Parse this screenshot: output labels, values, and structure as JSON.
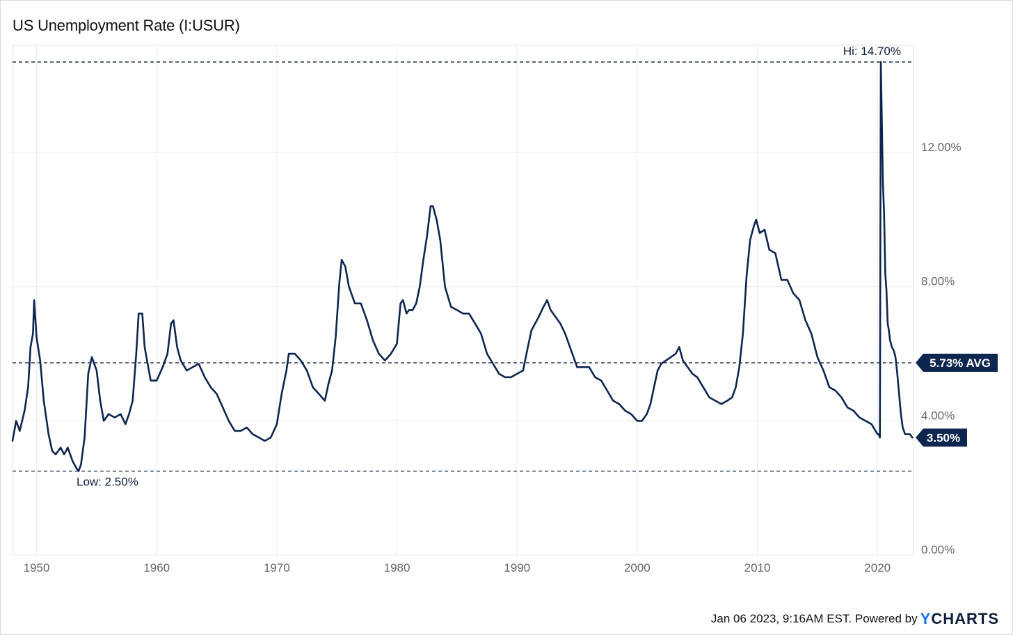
{
  "chart_data": {
    "type": "line",
    "title": "US Unemployment Rate (I:USUR)",
    "xlabel": "",
    "ylabel": "",
    "xlim": [
      1948.0,
      2023.0
    ],
    "ylim": [
      0,
      15.2
    ],
    "x_ticks": [
      {
        "value": 1950,
        "label": "1950"
      },
      {
        "value": 1960,
        "label": "1960"
      },
      {
        "value": 1970,
        "label": "1970"
      },
      {
        "value": 1980,
        "label": "1980"
      },
      {
        "value": 1990,
        "label": "1990"
      },
      {
        "value": 2000,
        "label": "2000"
      },
      {
        "value": 2010,
        "label": "2010"
      },
      {
        "value": 2020,
        "label": "2020"
      }
    ],
    "y_ticks": [
      {
        "value": 0,
        "label": "0.00%"
      },
      {
        "value": 4,
        "label": "4.00%"
      },
      {
        "value": 8,
        "label": "8.00%"
      },
      {
        "value": 12,
        "label": "12.00%"
      }
    ],
    "grid": true,
    "line_color": "#0d2650",
    "reference_lines": [
      {
        "value": 14.7,
        "label": "Hi: 14.70%"
      },
      {
        "value": 5.73,
        "label": "5.73% AVG"
      },
      {
        "value": 2.5,
        "label": "Low: 2.50%"
      }
    ],
    "last_value": {
      "value": 3.5,
      "label": "3.50%"
    },
    "series": [
      {
        "x": [
          1948.0,
          1948.3,
          1948.6,
          1949.0,
          1949.3,
          1949.5,
          1949.7,
          1949.8,
          1950.0,
          1950.3,
          1950.6,
          1951.0,
          1951.3,
          1951.6,
          1952.0,
          1952.3,
          1952.6,
          1953.0,
          1953.3,
          1953.5,
          1953.7,
          1954.0,
          1954.3,
          1954.6,
          1955.0,
          1955.3,
          1955.6,
          1956.0,
          1956.5,
          1957.0,
          1957.4,
          1957.7,
          1958.0,
          1958.3,
          1958.5,
          1958.8,
          1959.0,
          1959.5,
          1960.0,
          1960.5,
          1960.9,
          1961.2,
          1961.4,
          1961.7,
          1962.0,
          1962.5,
          1963.0,
          1963.5,
          1964.0,
          1964.5,
          1965.0,
          1965.5,
          1966.0,
          1966.5,
          1967.0,
          1967.5,
          1968.0,
          1968.5,
          1969.0,
          1969.5,
          1970.0,
          1970.4,
          1970.8,
          1971.0,
          1971.5,
          1972.0,
          1972.5,
          1973.0,
          1973.5,
          1974.0,
          1974.3,
          1974.6,
          1974.9,
          1975.2,
          1975.4,
          1975.7,
          1976.0,
          1976.5,
          1977.0,
          1977.5,
          1978.0,
          1978.5,
          1979.0,
          1979.5,
          1980.0,
          1980.3,
          1980.5,
          1980.8,
          1981.0,
          1981.3,
          1981.6,
          1981.9,
          1982.2,
          1982.5,
          1982.8,
          1983.0,
          1983.3,
          1983.6,
          1984.0,
          1984.5,
          1985.0,
          1985.5,
          1986.0,
          1986.5,
          1987.0,
          1987.5,
          1988.0,
          1988.5,
          1989.0,
          1989.5,
          1990.0,
          1990.5,
          1990.9,
          1991.2,
          1991.5,
          1991.8,
          1992.2,
          1992.5,
          1992.8,
          1993.2,
          1993.6,
          1994.0,
          1994.5,
          1995.0,
          1995.5,
          1996.0,
          1996.5,
          1997.0,
          1997.5,
          1998.0,
          1998.5,
          1999.0,
          1999.5,
          2000.0,
          2000.4,
          2000.8,
          2001.1,
          2001.4,
          2001.7,
          2002.0,
          2002.4,
          2002.8,
          2003.2,
          2003.5,
          2003.8,
          2004.2,
          2004.6,
          2005.0,
          2005.5,
          2006.0,
          2006.5,
          2007.0,
          2007.5,
          2007.9,
          2008.2,
          2008.5,
          2008.8,
          2009.1,
          2009.4,
          2009.7,
          2009.9,
          2010.2,
          2010.6,
          2011.0,
          2011.5,
          2012.0,
          2012.5,
          2013.0,
          2013.5,
          2014.0,
          2014.5,
          2015.0,
          2015.5,
          2016.0,
          2016.5,
          2017.0,
          2017.5,
          2018.0,
          2018.5,
          2019.0,
          2019.5,
          2020.0,
          2020.1,
          2020.2,
          2020.28,
          2020.35,
          2020.45,
          2020.55,
          2020.65,
          2020.75,
          2020.85,
          2020.95,
          2021.05,
          2021.2,
          2021.35,
          2021.5,
          2021.65,
          2021.8,
          2021.95,
          2022.1,
          2022.3,
          2022.5,
          2022.7,
          2022.9
        ],
        "values": [
          3.4,
          4.0,
          3.7,
          4.3,
          5.0,
          6.2,
          6.6,
          7.6,
          6.5,
          5.8,
          4.6,
          3.6,
          3.1,
          3.0,
          3.2,
          3.0,
          3.2,
          2.8,
          2.6,
          2.5,
          2.7,
          3.5,
          5.4,
          5.9,
          5.5,
          4.6,
          4.0,
          4.2,
          4.1,
          4.2,
          3.9,
          4.2,
          4.6,
          6.0,
          7.2,
          7.2,
          6.2,
          5.2,
          5.2,
          5.6,
          6.0,
          6.9,
          7.0,
          6.2,
          5.8,
          5.5,
          5.6,
          5.7,
          5.3,
          5.0,
          4.8,
          4.4,
          4.0,
          3.7,
          3.7,
          3.8,
          3.6,
          3.5,
          3.4,
          3.5,
          3.9,
          4.8,
          5.5,
          6.0,
          6.0,
          5.8,
          5.5,
          5.0,
          4.8,
          4.6,
          5.1,
          5.5,
          6.5,
          8.1,
          8.8,
          8.6,
          8.0,
          7.5,
          7.5,
          7.0,
          6.4,
          6.0,
          5.8,
          6.0,
          6.3,
          7.5,
          7.6,
          7.2,
          7.3,
          7.3,
          7.5,
          8.0,
          8.8,
          9.5,
          10.4,
          10.4,
          10.0,
          9.4,
          8.0,
          7.4,
          7.3,
          7.2,
          7.2,
          6.9,
          6.6,
          6.0,
          5.7,
          5.4,
          5.3,
          5.3,
          5.4,
          5.5,
          6.2,
          6.7,
          6.9,
          7.1,
          7.4,
          7.6,
          7.3,
          7.1,
          6.9,
          6.6,
          6.1,
          5.6,
          5.6,
          5.6,
          5.3,
          5.2,
          4.9,
          4.6,
          4.5,
          4.3,
          4.2,
          4.0,
          4.0,
          4.2,
          4.5,
          5.0,
          5.5,
          5.7,
          5.8,
          5.9,
          6.0,
          6.2,
          5.8,
          5.6,
          5.4,
          5.3,
          5.0,
          4.7,
          4.6,
          4.5,
          4.6,
          4.7,
          5.0,
          5.6,
          6.6,
          8.3,
          9.4,
          9.8,
          10.0,
          9.6,
          9.7,
          9.1,
          9.0,
          8.2,
          8.2,
          7.8,
          7.6,
          7.0,
          6.6,
          5.9,
          5.5,
          5.0,
          4.9,
          4.7,
          4.4,
          4.3,
          4.1,
          4.0,
          3.9,
          3.6,
          3.6,
          3.5,
          14.7,
          13.3,
          11.1,
          10.2,
          8.4,
          7.9,
          6.9,
          6.7,
          6.4,
          6.2,
          6.1,
          5.9,
          5.4,
          4.8,
          4.2,
          3.8,
          3.6,
          3.6,
          3.6,
          3.5
        ]
      }
    ]
  },
  "footer": {
    "timestamp": "Jan 06 2023, 9:16AM EST. Powered by",
    "brand_prefix": "Y",
    "brand_rest": "CHARTS"
  }
}
